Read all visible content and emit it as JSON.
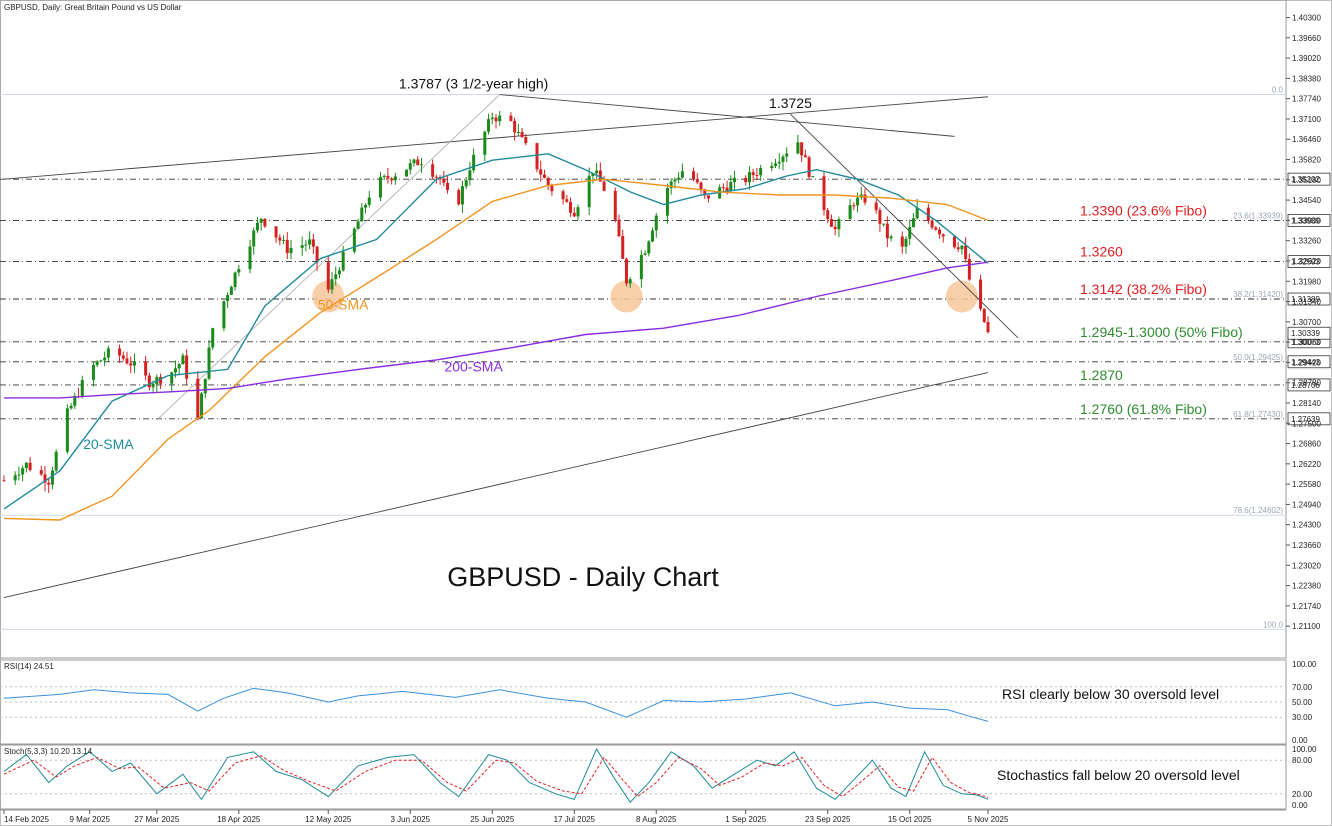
{
  "chart_data": {
    "type": "candlestick",
    "instrument_label": "GBPUSD, Daily:  Great Britain Pound vs US Dollar",
    "title": "GBPUSD - Daily Chart",
    "ylim": [
      1.206,
      1.406
    ],
    "y_ticks": [
      "1.40300",
      "1.39660",
      "1.39020",
      "1.38380",
      "1.37740",
      "1.37100",
      "1.36460",
      "1.35820",
      "1.35180",
      "1.34540",
      "1.33900",
      "1.33260",
      "1.32620",
      "1.31980",
      "1.31340",
      "1.30700",
      "1.30060",
      "1.29420",
      "1.28780",
      "1.28140",
      "1.27500",
      "1.26860",
      "1.26220",
      "1.25580",
      "1.24940",
      "1.24300",
      "1.23660",
      "1.23020",
      "1.22380",
      "1.21740",
      "1.21100"
    ],
    "x_ticks": [
      "14 Feb 2025",
      "9 Mar 2025",
      "27 Mar 2025",
      "18 Apr 2025",
      "12 May 2025",
      "3 Jun 2025",
      "25 Jun 2025",
      "17 Jul 2025",
      "8 Aug 2025",
      "1 Sep 2025",
      "23 Sep 2025",
      "15 Oct 2025",
      "5 Nov 2025"
    ],
    "price_keypoints": [
      [
        "2025-02-14",
        1.257
      ],
      [
        "2025-02-20",
        1.262
      ],
      [
        "2025-02-26",
        1.257
      ],
      [
        "2025-03-03",
        1.278
      ],
      [
        "2025-03-09",
        1.292
      ],
      [
        "2025-03-15",
        1.298
      ],
      [
        "2025-03-20",
        1.294
      ],
      [
        "2025-03-25",
        1.288
      ],
      [
        "2025-03-30",
        1.29
      ],
      [
        "2025-04-03",
        1.295
      ],
      [
        "2025-04-07",
        1.276
      ],
      [
        "2025-04-11",
        1.305
      ],
      [
        "2025-04-18",
        1.325
      ],
      [
        "2025-04-24",
        1.34
      ],
      [
        "2025-05-01",
        1.33
      ],
      [
        "2025-05-07",
        1.332
      ],
      [
        "2025-05-12",
        1.317
      ],
      [
        "2025-05-17",
        1.33
      ],
      [
        "2025-05-24",
        1.35
      ],
      [
        "2025-06-01",
        1.355
      ],
      [
        "2025-06-06",
        1.358
      ],
      [
        "2025-06-11",
        1.352
      ],
      [
        "2025-06-15",
        1.342
      ],
      [
        "2025-06-19",
        1.356
      ],
      [
        "2025-06-25",
        1.372
      ],
      [
        "2025-06-30",
        1.37
      ],
      [
        "2025-07-04",
        1.362
      ],
      [
        "2025-07-10",
        1.35
      ],
      [
        "2025-07-17",
        1.342
      ],
      [
        "2025-07-22",
        1.355
      ],
      [
        "2025-07-27",
        1.345
      ],
      [
        "2025-07-31",
        1.32
      ],
      [
        "2025-08-05",
        1.33
      ],
      [
        "2025-08-10",
        1.348
      ],
      [
        "2025-08-16",
        1.356
      ],
      [
        "2025-08-21",
        1.346
      ],
      [
        "2025-08-27",
        1.35
      ],
      [
        "2025-09-01",
        1.352
      ],
      [
        "2025-09-06",
        1.356
      ],
      [
        "2025-09-11",
        1.36
      ],
      [
        "2025-09-15",
        1.364
      ],
      [
        "2025-09-20",
        1.348
      ],
      [
        "2025-09-25",
        1.336
      ],
      [
        "2025-09-30",
        1.345
      ],
      [
        "2025-10-04",
        1.346
      ],
      [
        "2025-10-09",
        1.334
      ],
      [
        "2025-10-13",
        1.33
      ],
      [
        "2025-10-17",
        1.342
      ],
      [
        "2025-10-22",
        1.337
      ],
      [
        "2025-10-26",
        1.332
      ],
      [
        "2025-10-29",
        1.331
      ],
      [
        "2025-11-01",
        1.315
      ],
      [
        "2025-11-04",
        1.307
      ],
      [
        "2025-11-05",
        1.3033
      ]
    ],
    "moving_averages": [
      {
        "name": "20-SMA",
        "color": "#1f8a9a",
        "points": [
          [
            "2025-02-14",
            1.248
          ],
          [
            "2025-03-01",
            1.26
          ],
          [
            "2025-03-15",
            1.282
          ],
          [
            "2025-03-30",
            1.29
          ],
          [
            "2025-04-15",
            1.292
          ],
          [
            "2025-04-25",
            1.312
          ],
          [
            "2025-05-10",
            1.327
          ],
          [
            "2025-05-25",
            1.333
          ],
          [
            "2025-06-10",
            1.352
          ],
          [
            "2025-06-25",
            1.358
          ],
          [
            "2025-07-10",
            1.36
          ],
          [
            "2025-07-20",
            1.355
          ],
          [
            "2025-08-01",
            1.348
          ],
          [
            "2025-08-10",
            1.344
          ],
          [
            "2025-08-20",
            1.347
          ],
          [
            "2025-09-01",
            1.349
          ],
          [
            "2025-09-12",
            1.353
          ],
          [
            "2025-09-20",
            1.355
          ],
          [
            "2025-10-01",
            1.352
          ],
          [
            "2025-10-12",
            1.347
          ],
          [
            "2025-10-22",
            1.339
          ],
          [
            "2025-11-05",
            1.3255
          ]
        ]
      },
      {
        "name": "50-SMA",
        "color": "#f0941e",
        "points": [
          [
            "2025-02-14",
            1.245
          ],
          [
            "2025-03-01",
            1.2445
          ],
          [
            "2025-03-15",
            1.252
          ],
          [
            "2025-03-30",
            1.27
          ],
          [
            "2025-04-10",
            1.279
          ],
          [
            "2025-04-25",
            1.296
          ],
          [
            "2025-05-10",
            1.31
          ],
          [
            "2025-05-25",
            1.321
          ],
          [
            "2025-06-10",
            1.333
          ],
          [
            "2025-06-25",
            1.345
          ],
          [
            "2025-07-10",
            1.35
          ],
          [
            "2025-07-25",
            1.352
          ],
          [
            "2025-08-10",
            1.35
          ],
          [
            "2025-08-25",
            1.348
          ],
          [
            "2025-09-10",
            1.347
          ],
          [
            "2025-09-25",
            1.347
          ],
          [
            "2025-10-10",
            1.346
          ],
          [
            "2025-10-25",
            1.344
          ],
          [
            "2025-11-05",
            1.339
          ]
        ]
      },
      {
        "name": "200-SMA",
        "color": "#8a2be2",
        "points": [
          [
            "2025-02-14",
            1.283
          ],
          [
            "2025-03-01",
            1.283
          ],
          [
            "2025-03-15",
            1.284
          ],
          [
            "2025-04-01",
            1.285
          ],
          [
            "2025-04-15",
            1.286
          ],
          [
            "2025-05-01",
            1.289
          ],
          [
            "2025-05-20",
            1.292
          ],
          [
            "2025-06-10",
            1.295
          ],
          [
            "2025-07-01",
            1.299
          ],
          [
            "2025-07-20",
            1.303
          ],
          [
            "2025-08-10",
            1.305
          ],
          [
            "2025-08-30",
            1.309
          ],
          [
            "2025-09-20",
            1.315
          ],
          [
            "2025-10-10",
            1.32
          ],
          [
            "2025-10-25",
            1.324
          ],
          [
            "2025-11-05",
            1.3258
          ]
        ]
      }
    ],
    "annotations": [
      {
        "text": "1.3787 (3 1/2-year high)",
        "date": "2025-06-20",
        "value": 1.3787
      },
      {
        "text": "1.3725",
        "date": "2025-09-13",
        "value": 1.3725
      },
      {
        "text": "50-SMA",
        "date": "2025-05-16",
        "value": 1.309
      },
      {
        "text": "200-SMA",
        "date": "2025-06-20",
        "value": 1.2895
      },
      {
        "text": "20-SMA",
        "date": "2025-03-14",
        "value": 1.265
      }
    ],
    "level_lines": [
      {
        "value": 1.352,
        "label": "1.35202",
        "text": "",
        "color": "#222222"
      },
      {
        "value": 1.339,
        "label": "1.33939",
        "text": "1.3390 (23.6% Fibo)",
        "color": "#e02020",
        "fib_label": "23.6(1.33939)"
      },
      {
        "value": 1.326,
        "label": "1.32593",
        "text": "1.3260",
        "color": "#e02020"
      },
      {
        "value": 1.3142,
        "label": "1.31389",
        "text": "1.3142 (38.2% Fibo)",
        "color": "#e02020",
        "fib_label": "38.2(1.31420)"
      },
      {
        "value": 1.3007,
        "label": "1.30073",
        "text": "1.2945-1.3000 (50% Fibo)",
        "color": "#2e8b2e"
      },
      {
        "value": 1.2944,
        "label": "1.29443",
        "text": "",
        "color": "#222222",
        "fib_label": "50.0(1.29425)"
      },
      {
        "value": 1.2871,
        "label": "1.28706",
        "text": "1.2870",
        "color": "#2e8b2e"
      },
      {
        "value": 1.2764,
        "label": "1.27639",
        "text": "1.2760 (61.8% Fibo)",
        "color": "#2e8b2e",
        "fib_label": "61.8(1.27430)"
      }
    ],
    "last_price_label": "1.30339",
    "fib_level_labels": [
      "0.0",
      "78.6(1.24602)",
      "100.0"
    ],
    "trendlines": [
      {
        "from": [
          "2025-02-14",
          1.352
        ],
        "to": [
          "2025-11-05",
          1.378
        ]
      },
      {
        "from": [
          "2025-06-27",
          1.3787
        ],
        "to": [
          "2025-10-27",
          1.3655
        ]
      },
      {
        "from": [
          "2025-09-13",
          1.3725
        ],
        "to": [
          "2025-11-13",
          1.302
        ]
      },
      {
        "from": [
          "2025-02-14",
          1.22
        ],
        "to": [
          "2025-11-05",
          1.291
        ]
      }
    ],
    "highlight_circles": [
      {
        "date": "2025-05-12",
        "value": 1.315
      },
      {
        "date": "2025-07-31",
        "value": 1.315
      },
      {
        "date": "2025-10-29",
        "value": 1.315
      }
    ],
    "rsi": {
      "label": "RSI(14) 24.51",
      "ticks": [
        "100.00",
        "70.00",
        "50.00",
        "30.00",
        "0.00"
      ],
      "note": "RSI clearly below 30 oversold level",
      "points": [
        [
          "2025-02-14",
          55
        ],
        [
          "2025-03-01",
          60
        ],
        [
          "2025-03-10",
          66
        ],
        [
          "2025-03-20",
          62
        ],
        [
          "2025-03-30",
          60
        ],
        [
          "2025-04-07",
          38
        ],
        [
          "2025-04-14",
          55
        ],
        [
          "2025-04-22",
          68
        ],
        [
          "2025-05-01",
          62
        ],
        [
          "2025-05-12",
          50
        ],
        [
          "2025-05-20",
          58
        ],
        [
          "2025-06-01",
          64
        ],
        [
          "2025-06-15",
          56
        ],
        [
          "2025-06-27",
          66
        ],
        [
          "2025-07-10",
          55
        ],
        [
          "2025-07-20",
          50
        ],
        [
          "2025-07-31",
          30
        ],
        [
          "2025-08-10",
          52
        ],
        [
          "2025-08-20",
          50
        ],
        [
          "2025-09-01",
          54
        ],
        [
          "2025-09-13",
          62
        ],
        [
          "2025-09-25",
          45
        ],
        [
          "2025-10-05",
          50
        ],
        [
          "2025-10-15",
          42
        ],
        [
          "2025-10-25",
          40
        ],
        [
          "2025-11-01",
          30
        ],
        [
          "2025-11-05",
          24.51
        ]
      ]
    },
    "stochastics": {
      "label": "Stoch(5,3,3) 10.20 13.14",
      "ticks": [
        "100.00",
        "80.00",
        "20.00",
        "0.00"
      ],
      "note": "Stochastics fall below 20 oversold level",
      "k_points": [
        [
          "2025-02-14",
          60
        ],
        [
          "2025-02-20",
          90
        ],
        [
          "2025-02-26",
          40
        ],
        [
          "2025-03-03",
          70
        ],
        [
          "2025-03-09",
          95
        ],
        [
          "2025-03-15",
          60
        ],
        [
          "2025-03-20",
          75
        ],
        [
          "2025-03-27",
          20
        ],
        [
          "2025-04-03",
          55
        ],
        [
          "2025-04-08",
          10
        ],
        [
          "2025-04-15",
          85
        ],
        [
          "2025-04-22",
          95
        ],
        [
          "2025-04-28",
          60
        ],
        [
          "2025-05-05",
          45
        ],
        [
          "2025-05-12",
          15
        ],
        [
          "2025-05-20",
          70
        ],
        [
          "2025-05-28",
          85
        ],
        [
          "2025-06-04",
          90
        ],
        [
          "2025-06-11",
          40
        ],
        [
          "2025-06-16",
          15
        ],
        [
          "2025-06-24",
          90
        ],
        [
          "2025-06-29",
          80
        ],
        [
          "2025-07-05",
          40
        ],
        [
          "2025-07-12",
          20
        ],
        [
          "2025-07-17",
          10
        ],
        [
          "2025-07-23",
          100
        ],
        [
          "2025-07-28",
          45
        ],
        [
          "2025-08-01",
          5
        ],
        [
          "2025-08-06",
          40
        ],
        [
          "2025-08-12",
          95
        ],
        [
          "2025-08-18",
          70
        ],
        [
          "2025-08-23",
          30
        ],
        [
          "2025-08-29",
          55
        ],
        [
          "2025-09-04",
          80
        ],
        [
          "2025-09-09",
          70
        ],
        [
          "2025-09-14",
          95
        ],
        [
          "2025-09-20",
          30
        ],
        [
          "2025-09-25",
          10
        ],
        [
          "2025-09-30",
          45
        ],
        [
          "2025-10-05",
          80
        ],
        [
          "2025-10-10",
          30
        ],
        [
          "2025-10-14",
          15
        ],
        [
          "2025-10-19",
          95
        ],
        [
          "2025-10-24",
          35
        ],
        [
          "2025-10-29",
          20
        ],
        [
          "2025-11-02",
          18
        ],
        [
          "2025-11-05",
          10.2
        ]
      ],
      "d_points": [
        [
          "2025-02-14",
          55
        ],
        [
          "2025-02-22",
          80
        ],
        [
          "2025-02-28",
          50
        ],
        [
          "2025-03-05",
          70
        ],
        [
          "2025-03-11",
          85
        ],
        [
          "2025-03-17",
          65
        ],
        [
          "2025-03-22",
          68
        ],
        [
          "2025-03-29",
          30
        ],
        [
          "2025-04-05",
          40
        ],
        [
          "2025-04-10",
          25
        ],
        [
          "2025-04-17",
          75
        ],
        [
          "2025-04-24",
          88
        ],
        [
          "2025-04-30",
          62
        ],
        [
          "2025-05-07",
          42
        ],
        [
          "2025-05-14",
          25
        ],
        [
          "2025-05-22",
          60
        ],
        [
          "2025-05-30",
          80
        ],
        [
          "2025-06-06",
          80
        ],
        [
          "2025-06-13",
          40
        ],
        [
          "2025-06-18",
          25
        ],
        [
          "2025-06-26",
          80
        ],
        [
          "2025-07-01",
          75
        ],
        [
          "2025-07-07",
          42
        ],
        [
          "2025-07-14",
          25
        ],
        [
          "2025-07-19",
          20
        ],
        [
          "2025-07-25",
          85
        ],
        [
          "2025-07-30",
          45
        ],
        [
          "2025-08-03",
          15
        ],
        [
          "2025-08-08",
          40
        ],
        [
          "2025-08-14",
          85
        ],
        [
          "2025-08-20",
          65
        ],
        [
          "2025-08-25",
          35
        ],
        [
          "2025-08-31",
          50
        ],
        [
          "2025-09-06",
          75
        ],
        [
          "2025-09-11",
          70
        ],
        [
          "2025-09-16",
          85
        ],
        [
          "2025-09-22",
          35
        ],
        [
          "2025-09-27",
          15
        ],
        [
          "2025-10-02",
          42
        ],
        [
          "2025-10-07",
          70
        ],
        [
          "2025-10-12",
          32
        ],
        [
          "2025-10-16",
          25
        ],
        [
          "2025-10-21",
          85
        ],
        [
          "2025-10-26",
          40
        ],
        [
          "2025-10-31",
          22
        ],
        [
          "2025-11-03",
          18
        ],
        [
          "2025-11-05",
          13.14
        ]
      ]
    }
  },
  "colors": {
    "bull": "#1a8a1a",
    "bear": "#d42020",
    "grid": "#cfd8e6",
    "circle": "#f6c89a"
  }
}
